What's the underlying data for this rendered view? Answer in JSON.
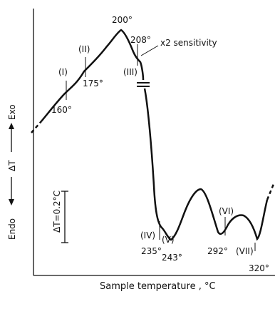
{
  "chart_data": {
    "type": "line",
    "xlabel": "Sample temperature , °C",
    "ylabel_exo": "Exo",
    "ylabel_mid": "ΔT",
    "ylabel_endo": "Endo",
    "scale_bar_label": "ΔT=0.2°C",
    "sensitivity_note": "x2 sensitivity",
    "peaks": [
      {
        "id": "I",
        "label": "(I)",
        "temperature_label": "160°"
      },
      {
        "id": "II",
        "label": "(II)",
        "temperature_label": "175°"
      },
      {
        "id": "max",
        "label": "",
        "temperature_label": "200°"
      },
      {
        "id": "III",
        "label": "(III)",
        "temperature_label": "208°"
      },
      {
        "id": "IV",
        "label": "(IV)",
        "temperature_label": "235°"
      },
      {
        "id": "V",
        "label": "(V)",
        "temperature_label": "243°"
      },
      {
        "id": "VI",
        "label": "(VI)",
        "temperature_label": "292°"
      },
      {
        "id": "VII",
        "label": "(VII)",
        "temperature_label": "320°"
      }
    ]
  }
}
